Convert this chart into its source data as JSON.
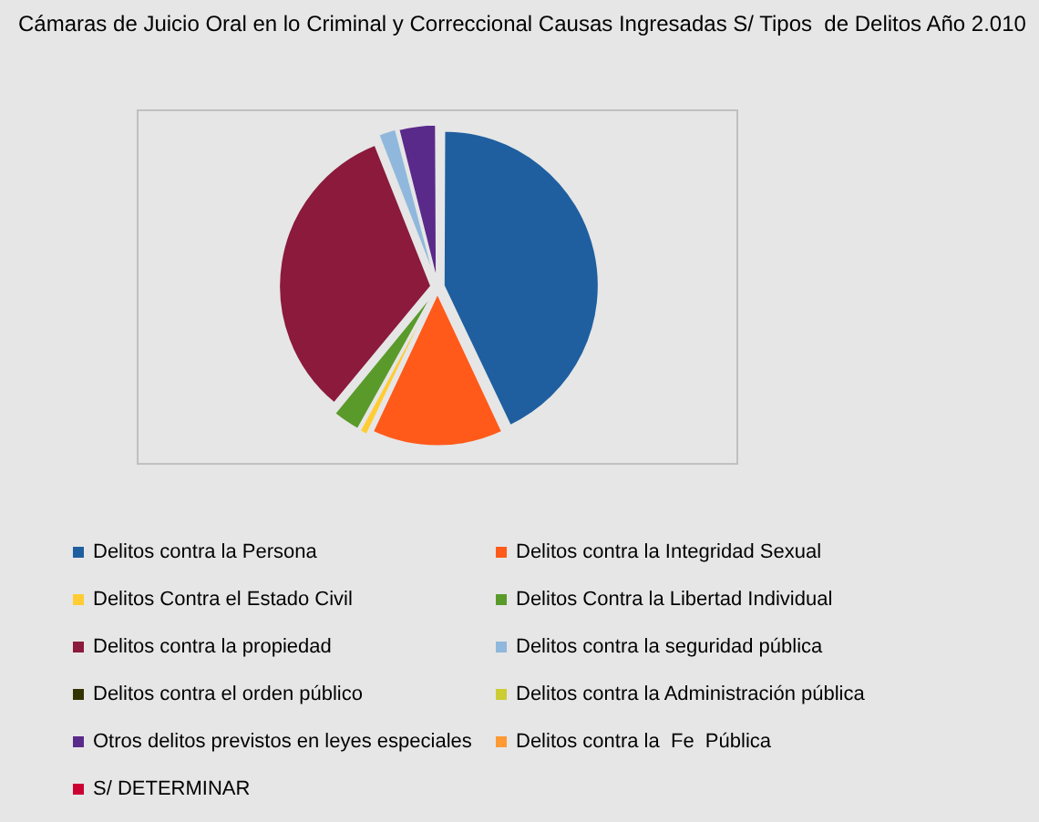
{
  "chart_data": {
    "type": "pie",
    "title": "Cámaras de Juicio Oral en lo Criminal y Correccional Causas Ingresadas S/ Tipos  de Delitos Año 2.010",
    "categories": [
      "Delitos contra la Persona",
      "Delitos contra la Integridad Sexual",
      "Delitos Contra el Estado Civil",
      "Delitos Contra la Libertad Individual",
      "Delitos contra la propiedad",
      "Delitos contra la seguridad pública",
      "Delitos contra el orden público",
      "Delitos contra la Administración pública",
      "Otros delitos previstos en leyes especiales",
      "Delitos contra la  Fe  Pública",
      "S/ DETERMINAR"
    ],
    "values": [
      43,
      14,
      1,
      3,
      33,
      2,
      0,
      0,
      4,
      0,
      0
    ],
    "colors": [
      "#1f5fa0",
      "#ff5a1a",
      "#ffcc33",
      "#5a9a2a",
      "#8b1a3c",
      "#8fb8dc",
      "#333300",
      "#cccc33",
      "#5a2a8a",
      "#ff9933",
      "#cc0033"
    ],
    "legend": "bottom"
  }
}
